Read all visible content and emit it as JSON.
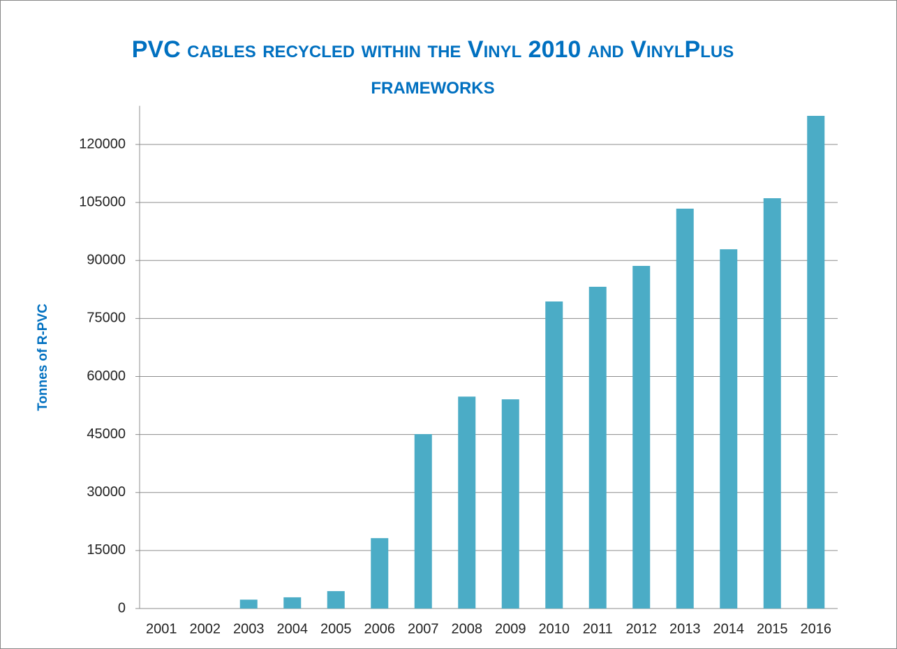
{
  "chart_data": {
    "type": "bar",
    "title": "PVC cables recycled within the Vinyl 2010 and VinylPlus frameworks",
    "y_label": "Tonnes of R-PVC",
    "categories": [
      "2001",
      "2002",
      "2003",
      "2004",
      "2005",
      "2006",
      "2007",
      "2008",
      "2009",
      "2010",
      "2011",
      "2012",
      "2013",
      "2014",
      "2015",
      "2016"
    ],
    "values": [
      0,
      0,
      2300,
      2900,
      4500,
      18200,
      45100,
      54800,
      54100,
      79400,
      83200,
      88600,
      103400,
      92900,
      106100,
      127400
    ],
    "color": "#4bacc6",
    "ylim": [
      0,
      130000
    ],
    "yticks": [
      0,
      15000,
      30000,
      45000,
      60000,
      75000,
      90000,
      105000,
      120000
    ],
    "grid": true
  }
}
